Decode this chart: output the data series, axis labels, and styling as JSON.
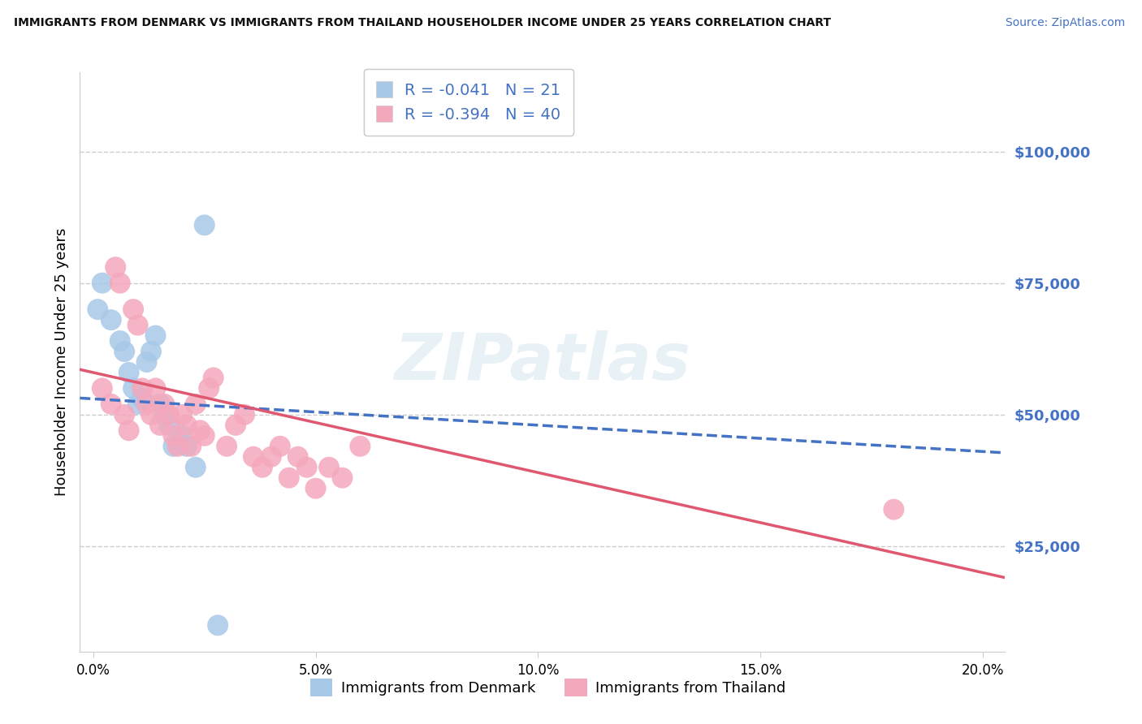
{
  "title": "IMMIGRANTS FROM DENMARK VS IMMIGRANTS FROM THAILAND HOUSEHOLDER INCOME UNDER 25 YEARS CORRELATION CHART",
  "source": "Source: ZipAtlas.com",
  "ylabel": "Householder Income Under 25 years",
  "denmark_color": "#a8c8e8",
  "thailand_color": "#f4a8bc",
  "denmark_line_color": "#4472c4",
  "thailand_line_color": "#e05870",
  "denmark_r": -0.041,
  "denmark_n": 21,
  "thailand_r": -0.394,
  "thailand_n": 40,
  "watermark": "ZIPatlas",
  "xlim": [
    -0.3,
    20.5
  ],
  "ylim": [
    5000,
    115000
  ],
  "yticks": [
    25000,
    50000,
    75000,
    100000
  ],
  "ytick_labels": [
    "$25,000",
    "$50,000",
    "$75,000",
    "$100,000"
  ],
  "xticks": [
    0,
    5,
    10,
    15,
    20
  ],
  "xtick_labels": [
    "0.0%",
    "5.0%",
    "10.0%",
    "15.0%",
    "20.0%"
  ],
  "denmark_x": [
    0.1,
    0.2,
    0.4,
    0.6,
    0.7,
    0.8,
    0.9,
    1.0,
    1.1,
    1.2,
    1.3,
    1.4,
    1.5,
    1.6,
    1.7,
    1.8,
    2.0,
    2.1,
    2.3,
    2.8,
    2.5
  ],
  "denmark_y": [
    70000,
    75000,
    68000,
    64000,
    62000,
    58000,
    55000,
    52000,
    53000,
    60000,
    62000,
    65000,
    52000,
    50000,
    48000,
    44000,
    46000,
    44000,
    40000,
    10000,
    86000
  ],
  "thailand_x": [
    0.2,
    0.4,
    0.5,
    0.6,
    0.7,
    0.8,
    0.9,
    1.0,
    1.1,
    1.2,
    1.3,
    1.4,
    1.5,
    1.6,
    1.7,
    1.8,
    1.9,
    2.0,
    2.1,
    2.2,
    2.3,
    2.4,
    2.5,
    2.6,
    2.7,
    3.0,
    3.2,
    3.4,
    3.6,
    3.8,
    4.0,
    4.2,
    4.4,
    4.6,
    4.8,
    5.0,
    5.3,
    5.6,
    6.0,
    18.0
  ],
  "thailand_y": [
    55000,
    52000,
    78000,
    75000,
    50000,
    47000,
    70000,
    67000,
    55000,
    52000,
    50000,
    55000,
    48000,
    52000,
    50000,
    46000,
    44000,
    50000,
    48000,
    44000,
    52000,
    47000,
    46000,
    55000,
    57000,
    44000,
    48000,
    50000,
    42000,
    40000,
    42000,
    44000,
    38000,
    42000,
    40000,
    36000,
    40000,
    38000,
    44000,
    32000
  ]
}
